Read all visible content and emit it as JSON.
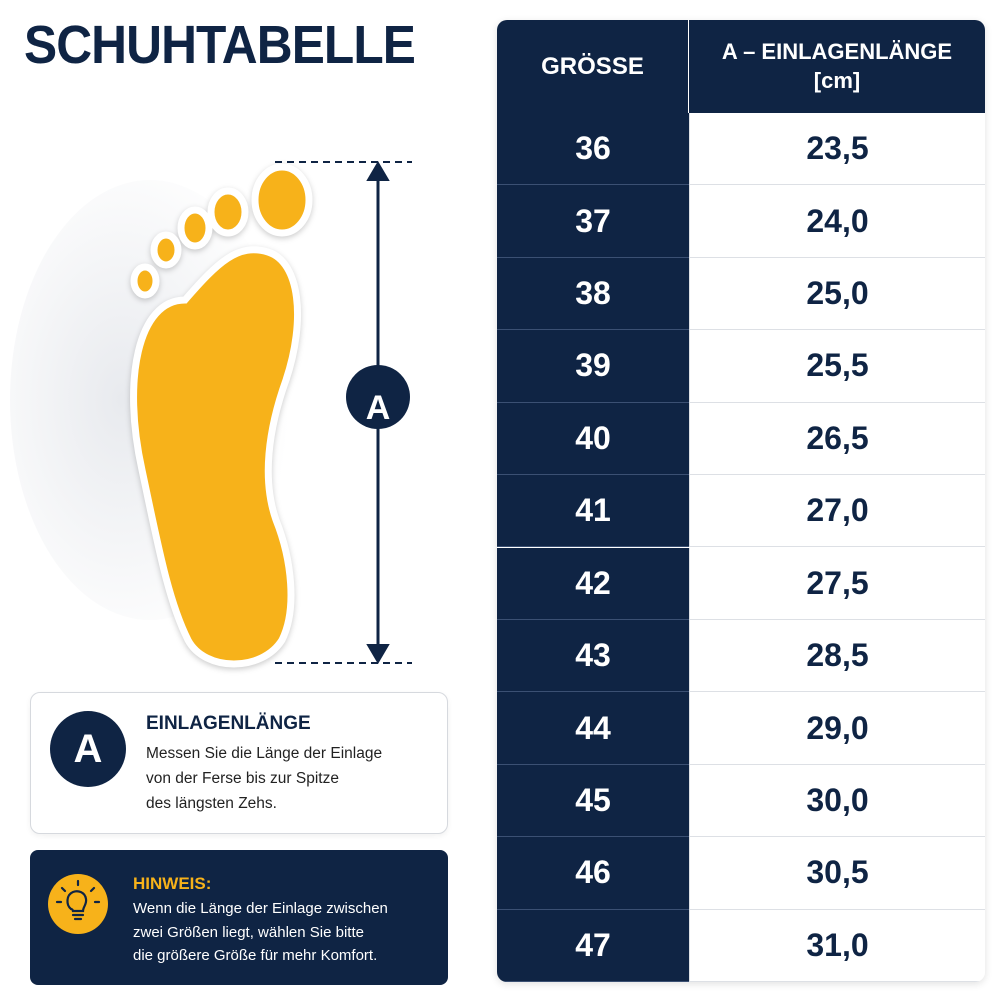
{
  "header": {
    "title": "SCHUHTABELLE"
  },
  "figure": {
    "dimension_label": "A"
  },
  "legend": {
    "badge": "A",
    "heading": "EINLAGENLÄNGE",
    "lines": [
      "Messen Sie die Länge der Einlage",
      "von der Ferse bis zur Spitze",
      "des längsten Zehs."
    ]
  },
  "hint": {
    "heading": "HINWEIS:",
    "lines": [
      "Wenn die Länge der Einlage zwischen",
      "zwei Größen liegt, wählen Sie bitte",
      "die größere Größe für mehr Komfort."
    ]
  },
  "table": {
    "columns": [
      "GRÖSSE",
      [
        "A – EINLAGENLÄNGE",
        "[cm]"
      ]
    ],
    "rows": [
      [
        "36",
        "23,5"
      ],
      [
        "37",
        "24,0"
      ],
      [
        "38",
        "25,0"
      ],
      [
        "39",
        "25,5"
      ],
      [
        "40",
        "26,5"
      ],
      [
        "41",
        "27,0"
      ],
      [
        "42",
        "27,5"
      ],
      [
        "43",
        "28,5"
      ],
      [
        "44",
        "29,0"
      ],
      [
        "45",
        "30,0"
      ],
      [
        "46",
        "30,5"
      ],
      [
        "47",
        "31,0"
      ]
    ]
  }
}
